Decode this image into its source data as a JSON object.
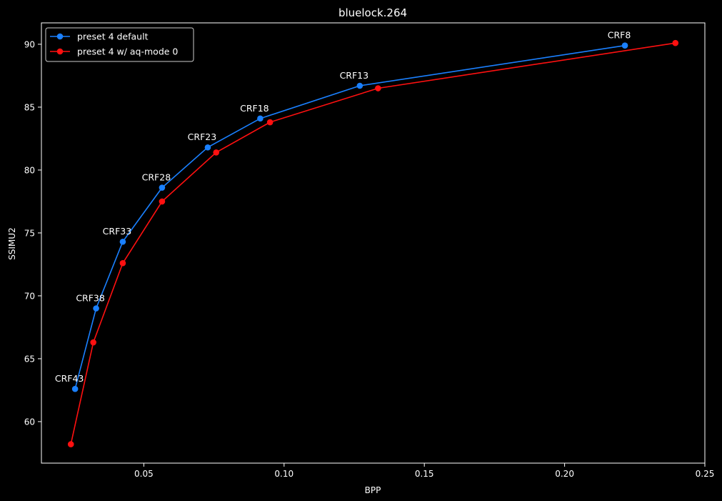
{
  "chart_data": {
    "type": "line",
    "title": "bluelock.264",
    "xlabel": "BPP",
    "ylabel": "SSIMU2",
    "xlim": [
      0.0135,
      0.25
    ],
    "ylim": [
      56.7,
      91.7
    ],
    "xticks": [
      0.05,
      0.1,
      0.15,
      0.2,
      0.25
    ],
    "xtick_labels": [
      "0.05",
      "0.10",
      "0.15",
      "0.20",
      "0.25"
    ],
    "yticks": [
      60,
      65,
      70,
      75,
      80,
      85,
      90
    ],
    "ytick_labels": [
      "60",
      "65",
      "70",
      "75",
      "80",
      "85",
      "90"
    ],
    "grid": false,
    "legend_position": "upper-left",
    "series": [
      {
        "name": "preset 4 default",
        "color": "#1a80ff",
        "x": [
          0.0255,
          0.033,
          0.0425,
          0.0565,
          0.0728,
          0.0915,
          0.127,
          0.2215
        ],
        "y": [
          62.6,
          69.0,
          74.3,
          78.6,
          81.8,
          84.1,
          86.7,
          89.9
        ]
      },
      {
        "name": "preset 4 w/ aq-mode 0",
        "color": "#ff1010",
        "x": [
          0.024,
          0.032,
          0.0425,
          0.0565,
          0.0758,
          0.095,
          0.1335,
          0.2395
        ],
        "y": [
          58.2,
          66.3,
          72.6,
          77.5,
          81.4,
          83.8,
          86.5,
          90.1
        ]
      }
    ],
    "annotations": [
      {
        "text": "CRF43",
        "x": 0.0255,
        "y": 62.6
      },
      {
        "text": "CRF38",
        "x": 0.033,
        "y": 69.0
      },
      {
        "text": "CRF33",
        "x": 0.0425,
        "y": 74.3
      },
      {
        "text": "CRF28",
        "x": 0.0565,
        "y": 78.6
      },
      {
        "text": "CRF23",
        "x": 0.0728,
        "y": 81.8
      },
      {
        "text": "CRF18",
        "x": 0.0915,
        "y": 84.1
      },
      {
        "text": "CRF13",
        "x": 0.127,
        "y": 86.7
      },
      {
        "text": "CRF8",
        "x": 0.2215,
        "y": 89.9
      }
    ]
  }
}
